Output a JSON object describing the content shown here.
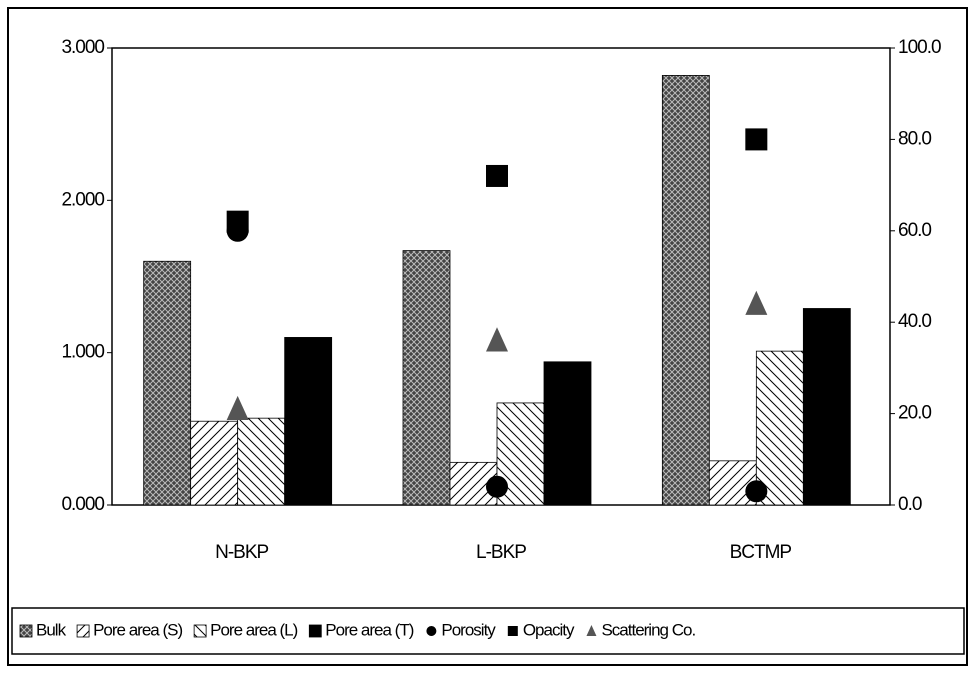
{
  "chart_data": {
    "type": "bar",
    "categories": [
      "N-BKP",
      "L-BKP",
      "BCTMP"
    ],
    "series": [
      {
        "name": "Bulk",
        "color": "#333333",
        "pattern": "crosshatch",
        "values": [
          1.6,
          1.67,
          2.82
        ]
      },
      {
        "name": "Pore area (S)",
        "color": "#ffffff",
        "pattern": "hatch",
        "values": [
          0.55,
          0.28,
          0.29
        ]
      },
      {
        "name": "Pore area (L)",
        "color": "#ffffff",
        "pattern": "hatch-reverse",
        "values": [
          0.57,
          0.67,
          1.01
        ]
      },
      {
        "name": "Pore area (T)",
        "color": "#000000",
        "pattern": "solid",
        "values": [
          1.1,
          0.94,
          1.29
        ]
      },
      {
        "name": "Porosity",
        "color": "#000000",
        "marker": "circle",
        "axis": "y2",
        "values": [
          60,
          4,
          3
        ]
      },
      {
        "name": "Opacity",
        "color": "#000000",
        "marker": "square",
        "axis": "y2",
        "values": [
          62,
          72,
          80
        ]
      },
      {
        "name": "Scattering Co.",
        "color": "#555555",
        "marker": "triangle",
        "axis": "y2",
        "values": [
          21,
          36,
          44
        ]
      }
    ],
    "ylim": [
      0,
      3
    ],
    "yticks": [
      {
        "value": 0,
        "label": "0.000"
      },
      {
        "value": 1,
        "label": "1.000"
      },
      {
        "value": 2,
        "label": "2.000"
      },
      {
        "value": 3,
        "label": "3.000"
      }
    ],
    "y2lim": [
      0,
      100
    ],
    "y2ticks": [
      {
        "value": 0,
        "label": "0.0"
      },
      {
        "value": 20,
        "label": "20.0"
      },
      {
        "value": 40,
        "label": "40.0"
      },
      {
        "value": 60,
        "label": "60.0"
      },
      {
        "value": 80,
        "label": "80.0"
      },
      {
        "value": 100,
        "label": "100.0"
      }
    ],
    "legend": "bottom"
  }
}
